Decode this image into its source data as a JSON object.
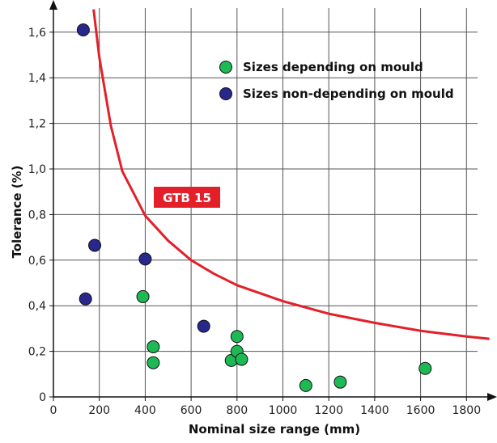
{
  "chart_data": {
    "type": "scatter",
    "title": "",
    "xlabel": "Nominal size range (mm)",
    "ylabel": "Tolerance (%)",
    "xlim": [
      0,
      1900
    ],
    "ylim": [
      0,
      1.7
    ],
    "x_ticks": [
      0,
      200,
      400,
      600,
      800,
      1000,
      1200,
      1400,
      1600,
      1800
    ],
    "x_tick_labels": [
      "0",
      "200",
      "400",
      "600",
      "800",
      "1000",
      "1200",
      "1400",
      "1600",
      "1800"
    ],
    "y_ticks": [
      0,
      0.2,
      0.4,
      0.6,
      0.8,
      1.0,
      1.2,
      1.4,
      1.6
    ],
    "y_tick_labels": [
      "0",
      "0,2",
      "0,4",
      "0,6",
      "0,8",
      "1,0",
      "1,2",
      "1,4",
      "1,6"
    ],
    "grid": true,
    "legend_position": "top-right",
    "series": [
      {
        "name": "Sizes depending on mould",
        "color": "#1db954",
        "points": [
          {
            "x": 390,
            "y": 0.44
          },
          {
            "x": 435,
            "y": 0.22
          },
          {
            "x": 435,
            "y": 0.15
          },
          {
            "x": 775,
            "y": 0.16
          },
          {
            "x": 800,
            "y": 0.265
          },
          {
            "x": 800,
            "y": 0.2
          },
          {
            "x": 820,
            "y": 0.165
          },
          {
            "x": 1100,
            "y": 0.05
          },
          {
            "x": 1250,
            "y": 0.065
          },
          {
            "x": 1620,
            "y": 0.125
          }
        ]
      },
      {
        "name": "Sizes non-depending on mould",
        "color": "#28288c",
        "points": [
          {
            "x": 130,
            "y": 1.61
          },
          {
            "x": 180,
            "y": 0.665
          },
          {
            "x": 140,
            "y": 0.43
          },
          {
            "x": 400,
            "y": 0.605
          },
          {
            "x": 655,
            "y": 0.31
          }
        ]
      }
    ],
    "curve": {
      "label": "GTB 15",
      "color": "#e3202a",
      "points": [
        {
          "x": 175,
          "y": 1.7
        },
        {
          "x": 200,
          "y": 1.49
        },
        {
          "x": 250,
          "y": 1.19
        },
        {
          "x": 300,
          "y": 0.99
        },
        {
          "x": 400,
          "y": 0.795
        },
        {
          "x": 500,
          "y": 0.685
        },
        {
          "x": 600,
          "y": 0.6
        },
        {
          "x": 700,
          "y": 0.54
        },
        {
          "x": 800,
          "y": 0.49
        },
        {
          "x": 1000,
          "y": 0.42
        },
        {
          "x": 1200,
          "y": 0.365
        },
        {
          "x": 1400,
          "y": 0.325
        },
        {
          "x": 1600,
          "y": 0.29
        },
        {
          "x": 1800,
          "y": 0.265
        },
        {
          "x": 1900,
          "y": 0.255
        }
      ]
    }
  }
}
